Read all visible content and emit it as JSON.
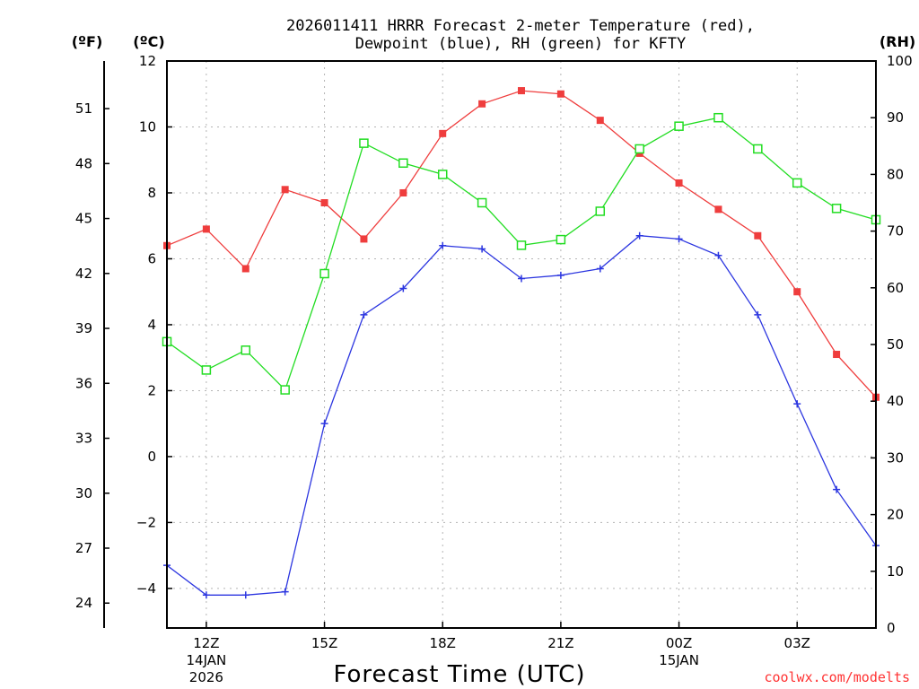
{
  "chart_data": {
    "type": "line",
    "title_line1": "2026011411 HRRR Forecast 2-meter Temperature (red),",
    "title_line2": "Dewpoint (blue), RH (green) for KFTY",
    "units": {
      "f": "(ºF)",
      "c": "(ºC)",
      "rh": "(RH)"
    },
    "xlabel": "Forecast Time (UTC)",
    "credit": "coolwx.com/modelts",
    "hours": [
      11,
      12,
      13,
      14,
      15,
      16,
      17,
      18,
      19,
      20,
      21,
      22,
      23,
      24,
      25,
      26,
      27,
      28,
      29
    ],
    "xlim": [
      11,
      29
    ],
    "x_ticks": [
      {
        "hour": 12,
        "label": "12Z",
        "sub1": "14JAN",
        "sub2": "2026"
      },
      {
        "hour": 15,
        "label": "15Z"
      },
      {
        "hour": 18,
        "label": "18Z"
      },
      {
        "hour": 21,
        "label": "21Z"
      },
      {
        "hour": 24,
        "label": "00Z",
        "sub1": "15JAN"
      },
      {
        "hour": 27,
        "label": "03Z"
      }
    ],
    "celsius_axis": {
      "ylim": [
        -5.2,
        12
      ],
      "ticks": [
        "12",
        "10",
        "8",
        "6",
        "4",
        "2",
        "0",
        "−2",
        "−4"
      ],
      "tick_values": [
        12,
        10,
        8,
        6,
        4,
        2,
        0,
        -2,
        -4
      ]
    },
    "fahrenheit_axis": {
      "ticks": [
        "51",
        "48",
        "45",
        "42",
        "39",
        "36",
        "33",
        "30",
        "27",
        "24"
      ],
      "tick_values": [
        51,
        48,
        45,
        42,
        39,
        36,
        33,
        30,
        27,
        24
      ]
    },
    "rh_axis": {
      "ylim": [
        0,
        100
      ],
      "ticks": [
        "100",
        "90",
        "80",
        "70",
        "60",
        "50",
        "40",
        "30",
        "20",
        "10",
        "0"
      ],
      "tick_values": [
        100,
        90,
        80,
        70,
        60,
        50,
        40,
        30,
        20,
        10,
        0
      ]
    },
    "series": [
      {
        "name": "Temperature",
        "axis": "celsius",
        "color": "#ef3d3d",
        "marker": "filled-square",
        "values": [
          6.4,
          6.9,
          5.7,
          8.1,
          7.7,
          6.6,
          8.0,
          9.8,
          10.7,
          11.1,
          11.0,
          10.2,
          9.2,
          8.3,
          7.5,
          6.7,
          5.0,
          3.1,
          1.8
        ]
      },
      {
        "name": "Dewpoint",
        "axis": "celsius",
        "color": "#2c36e0",
        "marker": "plus",
        "values": [
          -3.3,
          -4.2,
          -4.2,
          -4.1,
          1.0,
          4.3,
          5.1,
          6.4,
          6.3,
          5.4,
          5.5,
          5.7,
          6.7,
          6.6,
          6.1,
          4.3,
          1.6,
          -1.0,
          -2.7
        ]
      },
      {
        "name": "RH",
        "axis": "rh",
        "color": "#22dd22",
        "marker": "open-square",
        "values": [
          50.5,
          45.5,
          49.0,
          42.0,
          62.5,
          85.5,
          82.0,
          80.0,
          75.0,
          67.5,
          68.5,
          73.5,
          84.5,
          88.5,
          90.0,
          84.5,
          78.5,
          74.0,
          72.0
        ]
      }
    ],
    "grid": "dotted"
  }
}
